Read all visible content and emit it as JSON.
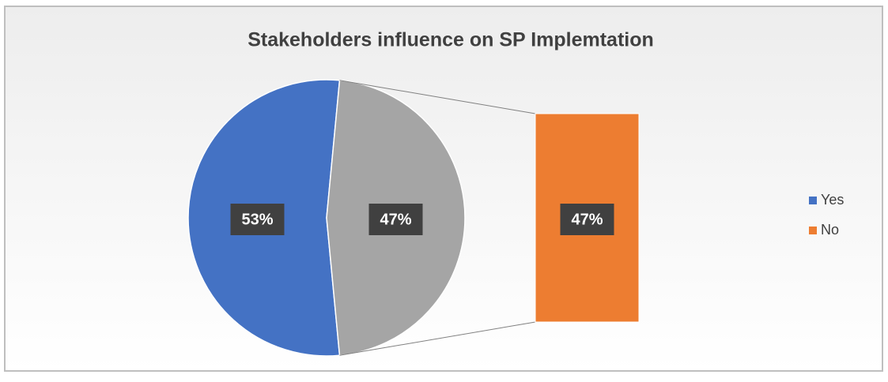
{
  "chart_data": {
    "type": "bar-of-pie",
    "title": "Stakeholders influence on SP Implemtation",
    "categories": [
      "Yes",
      "No"
    ],
    "values": [
      53,
      47
    ],
    "value_labels": [
      "53%",
      "47%"
    ],
    "colors": [
      "#4472c4",
      "#ed7d31"
    ],
    "split_color": "#a5a5a5",
    "legend": "right"
  }
}
